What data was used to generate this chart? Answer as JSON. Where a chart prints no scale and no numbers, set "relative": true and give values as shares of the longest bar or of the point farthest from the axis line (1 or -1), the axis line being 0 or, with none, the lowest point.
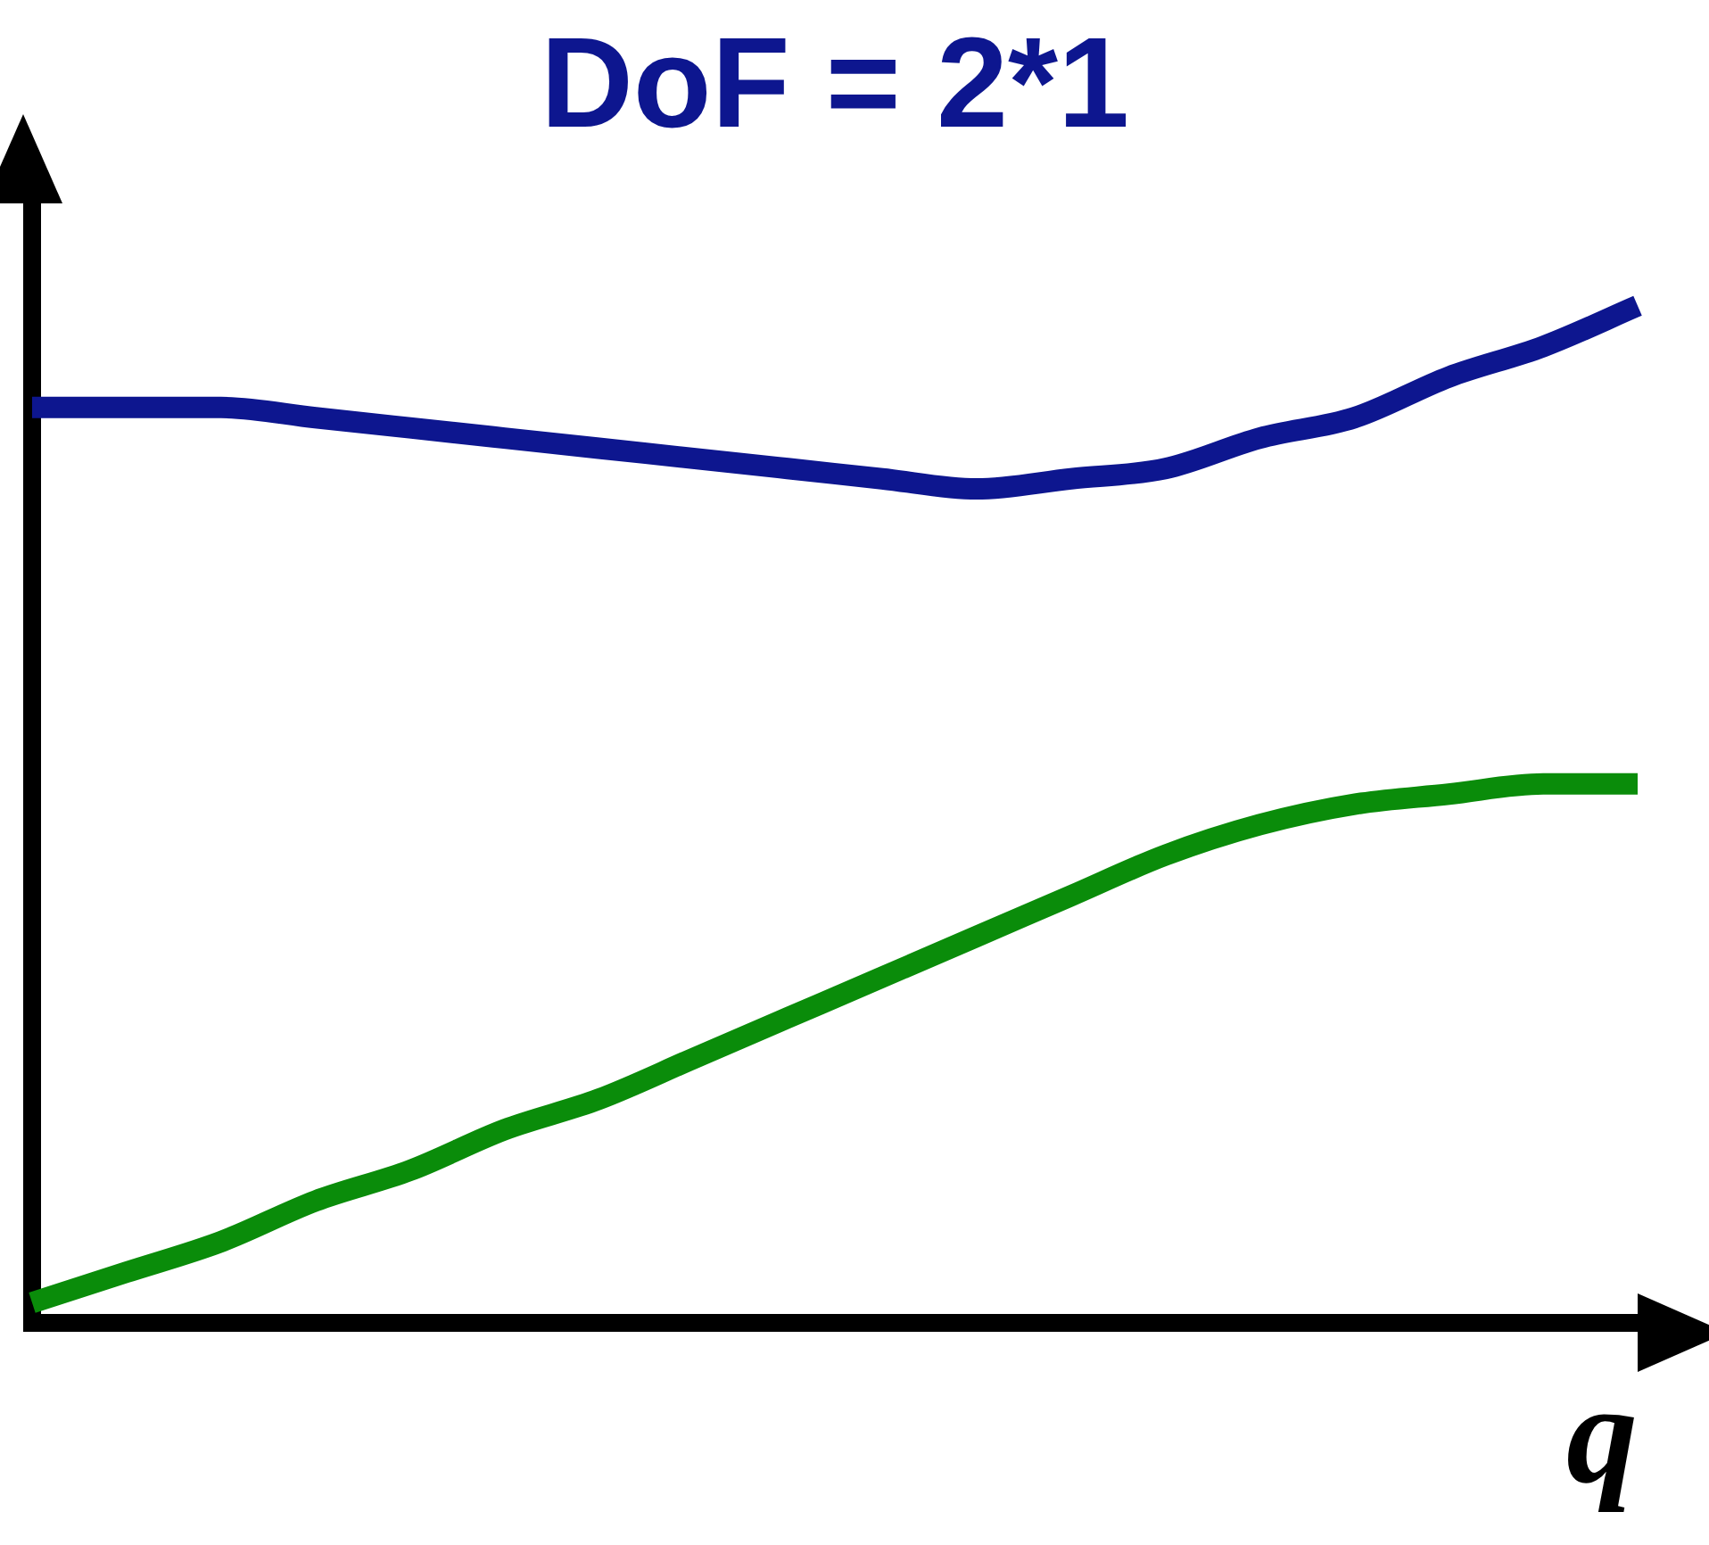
{
  "chart_data": {
    "type": "line",
    "title": "DoF = 2*1",
    "xlabel": "q",
    "relative": true,
    "grid": false,
    "legend": false,
    "marker": "none",
    "line_style": "solid",
    "categories": [
      null,
      null,
      null,
      null,
      null,
      null,
      null,
      null,
      null,
      null,
      null,
      null,
      null,
      null,
      null,
      null,
      null,
      null
    ],
    "series": [
      {
        "color": "#0d168f",
        "values": [
          0.9,
          0.9,
          0.9,
          0.89,
          0.88,
          0.87,
          0.86,
          0.85,
          0.84,
          0.83,
          0.82,
          0.83,
          0.84,
          0.87,
          0.89,
          0.93,
          0.96,
          1
        ]
      },
      {
        "color": "#0a8c0a",
        "values": [
          0.02,
          0.05,
          0.08,
          0.12,
          0.15,
          0.19,
          0.22,
          0.26,
          0.3,
          0.34,
          0.38,
          0.42,
          0.46,
          0.49,
          0.51,
          0.52,
          0.53,
          0.53
        ]
      }
    ]
  }
}
